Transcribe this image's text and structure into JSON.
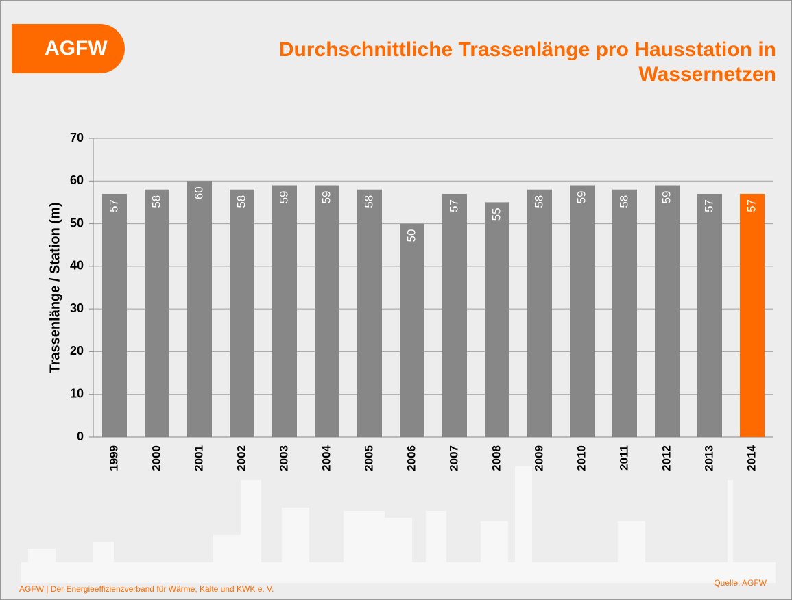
{
  "logo": "AGFW",
  "footer": "AGFW | Der Energieeffizienzverband  für Wärme, Kälte und KWK e. V.",
  "source": "Quelle: AGFW",
  "chart_data": {
    "type": "bar",
    "title": "Durchschnittliche Trassenlänge pro Hausstation in Wassernetzen",
    "y_label": "Trassenlänge / Station (m)",
    "categories": [
      "1999",
      "2000",
      "2001",
      "2002",
      "2003",
      "2004",
      "2005",
      "2006",
      "2007",
      "2008",
      "2009",
      "2010",
      "2011",
      "2012",
      "2013",
      "2014"
    ],
    "values": [
      57,
      58,
      60,
      58,
      59,
      59,
      58,
      50,
      57,
      55,
      58,
      59,
      58,
      59,
      57,
      57
    ],
    "colors": [
      "#878787",
      "#878787",
      "#878787",
      "#878787",
      "#878787",
      "#878787",
      "#878787",
      "#878787",
      "#878787",
      "#878787",
      "#878787",
      "#878787",
      "#878787",
      "#878787",
      "#878787",
      "#ff6a00"
    ],
    "ylim": [
      0,
      70
    ],
    "yticks": [
      0,
      10,
      20,
      30,
      40,
      50,
      60,
      70
    ],
    "grid": true
  }
}
